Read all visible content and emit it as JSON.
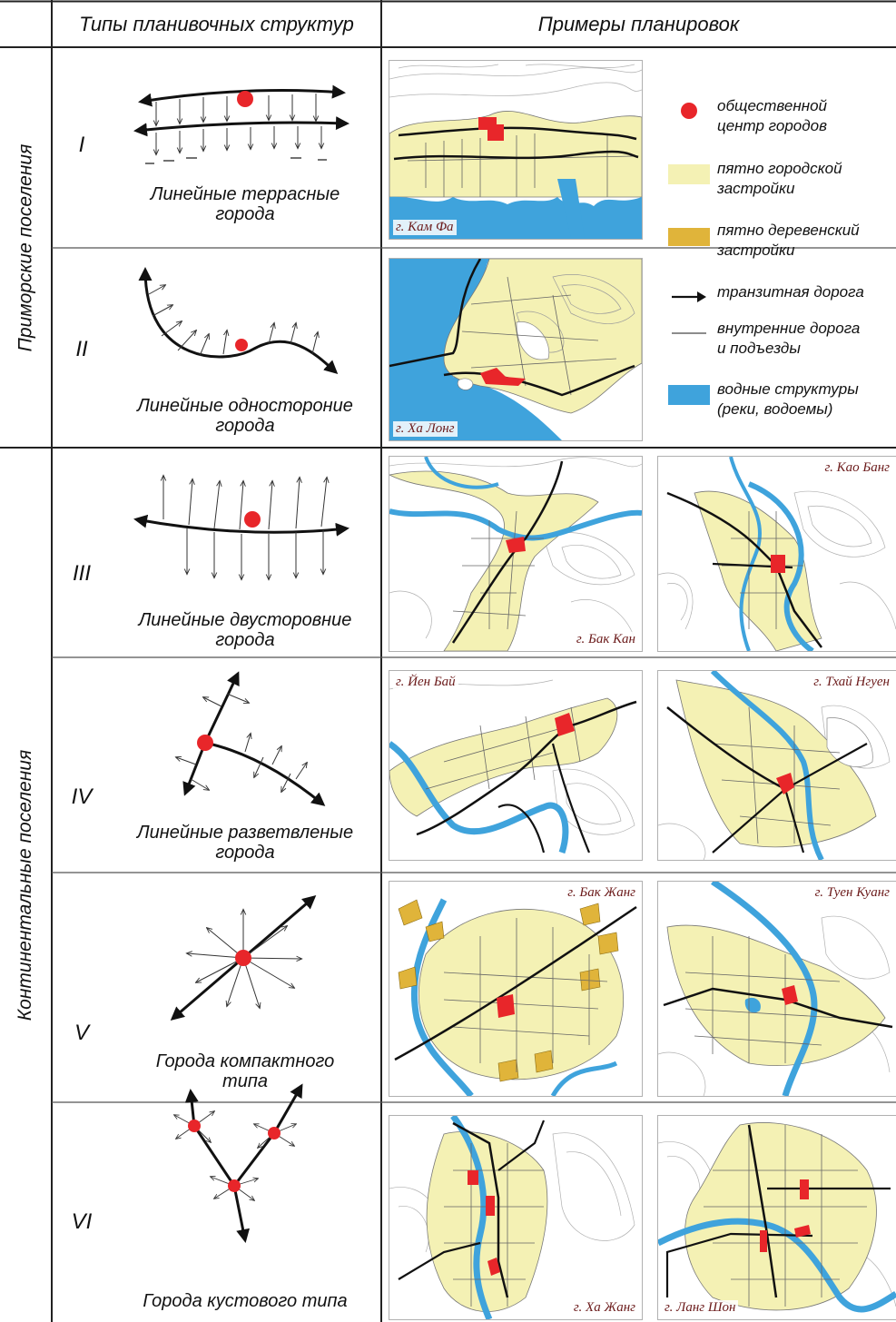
{
  "header": {
    "types_title": "Типы планивочных структур",
    "examples_title": "Примеры планировок"
  },
  "groups": [
    {
      "label": "Приморские поселения"
    },
    {
      "label": "Континентальные поселения"
    }
  ],
  "rows": [
    {
      "roman": "I",
      "name_line1": "Линейные террасные",
      "name_line2": "города",
      "maps": [
        "г. Кам Фа"
      ]
    },
    {
      "roman": "II",
      "name_line1": "Линейные одностороние",
      "name_line2": "города",
      "maps": [
        "г. Ха Лонг"
      ]
    },
    {
      "roman": "III",
      "name_line1": "Линейные двусторовние",
      "name_line2": "города",
      "maps": [
        "г. Бак Кан",
        "г. Као Банг"
      ]
    },
    {
      "roman": "IV",
      "name_line1": "Линейные разветвленые",
      "name_line2": "города",
      "maps": [
        "г. Йен Бай",
        "г. Тхай Нгуен"
      ]
    },
    {
      "roman": "V",
      "name_line1": "Города компактного",
      "name_line2": "типа",
      "maps": [
        "г. Бак Жанг",
        "г. Туен Куанг"
      ]
    },
    {
      "roman": "VI",
      "name_line1": "Города кустового типа",
      "name_line2": "",
      "maps": [
        "г. Ха Жанг",
        "г. Ланг Шон"
      ]
    }
  ],
  "legend": [
    {
      "icon": "red-dot",
      "line1": "общественной",
      "line2": "центр городов"
    },
    {
      "icon": "yellow-patch",
      "line1": "пятно городской",
      "line2": "застройки"
    },
    {
      "icon": "ochre-patch",
      "line1": "пятно деревенский",
      "line2": "застройки"
    },
    {
      "icon": "arrow",
      "line1": "транзитная дорога",
      "line2": ""
    },
    {
      "icon": "thin-line",
      "line1": "внутренние дорога",
      "line2": "и подъезды"
    },
    {
      "icon": "blue-patch",
      "line1": "водные структуры",
      "line2": "(реки, водоемы)"
    }
  ],
  "colors": {
    "center_red": "#e8262a",
    "urban_yellow": "#f4f1b4",
    "village_ochre": "#e0b43a",
    "water_blue": "#3fa3dc",
    "contour_gray": "#9a9a9a"
  }
}
